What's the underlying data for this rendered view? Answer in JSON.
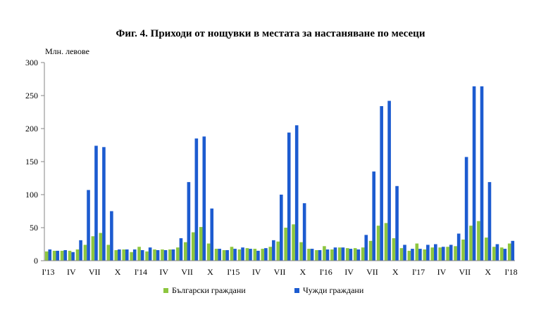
{
  "chart_data": {
    "type": "bar",
    "title": "Фиг. 4. Приходи от нощувки в местата за настаняване по месеци",
    "ylabel": "Млн. левове",
    "xlabel": "",
    "ylim": [
      0,
      300
    ],
    "yticks": [
      0,
      50,
      100,
      150,
      200,
      250,
      300
    ],
    "grid": false,
    "legend_position": "bottom",
    "tick_labels": [
      {
        "index": 0,
        "label": "I'13"
      },
      {
        "index": 3,
        "label": "IV"
      },
      {
        "index": 6,
        "label": "VII"
      },
      {
        "index": 9,
        "label": "X"
      },
      {
        "index": 12,
        "label": "I'14"
      },
      {
        "index": 15,
        "label": "IV"
      },
      {
        "index": 18,
        "label": "VII"
      },
      {
        "index": 21,
        "label": "X"
      },
      {
        "index": 24,
        "label": "I'15"
      },
      {
        "index": 27,
        "label": "IV"
      },
      {
        "index": 30,
        "label": "VII"
      },
      {
        "index": 33,
        "label": "X"
      },
      {
        "index": 36,
        "label": "I'16"
      },
      {
        "index": 39,
        "label": "IV"
      },
      {
        "index": 42,
        "label": "VII"
      },
      {
        "index": 45,
        "label": "X"
      },
      {
        "index": 48,
        "label": "I'17"
      },
      {
        "index": 51,
        "label": "IV"
      },
      {
        "index": 54,
        "label": "VII"
      },
      {
        "index": 57,
        "label": "X"
      },
      {
        "index": 60,
        "label": "I'18"
      }
    ],
    "series": [
      {
        "name": "Български граждани",
        "color": "#8dc63f",
        "values": [
          14,
          15,
          15,
          15,
          17,
          24,
          37,
          42,
          24,
          16,
          17,
          13,
          21,
          14,
          17,
          17,
          17,
          20,
          28,
          43,
          51,
          26,
          18,
          16,
          21,
          17,
          19,
          18,
          18,
          21,
          29,
          50,
          55,
          28,
          18,
          16,
          22,
          17,
          20,
          19,
          19,
          20,
          30,
          53,
          57,
          34,
          19,
          15,
          26,
          17,
          20,
          20,
          21,
          22,
          32,
          53,
          60,
          35,
          21,
          20,
          26
        ]
      },
      {
        "name": "Чужди граждани",
        "color": "#1c5bd0",
        "values": [
          17,
          15,
          16,
          13,
          31,
          107,
          174,
          172,
          75,
          17,
          17,
          17,
          16,
          20,
          16,
          16,
          17,
          34,
          119,
          185,
          188,
          79,
          18,
          16,
          18,
          20,
          18,
          15,
          19,
          31,
          100,
          194,
          205,
          87,
          18,
          16,
          17,
          20,
          20,
          18,
          17,
          39,
          135,
          234,
          242,
          113,
          24,
          18,
          18,
          24,
          25,
          21,
          24,
          41,
          157,
          264,
          264,
          119,
          25,
          18,
          30
        ]
      }
    ]
  }
}
